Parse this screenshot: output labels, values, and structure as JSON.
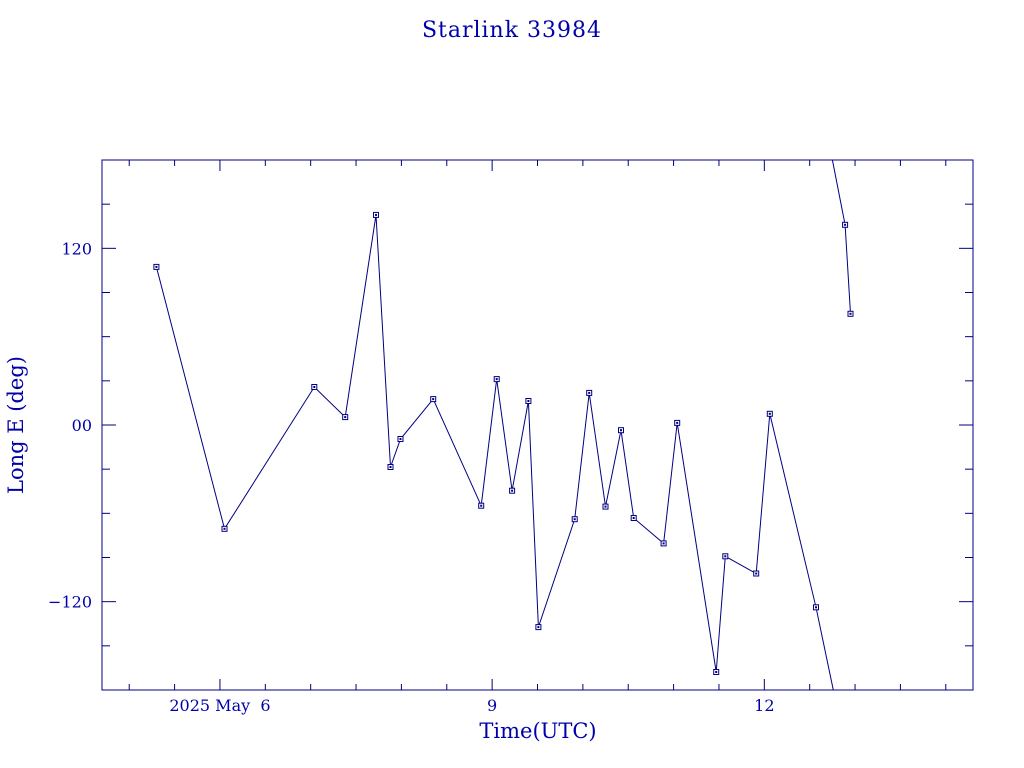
{
  "chart_data": {
    "type": "line",
    "title": "Starlink 33984",
    "xlabel": "Time(UTC)",
    "ylabel": "Long E (deg)",
    "x_unit": "days (2025 May)",
    "xlim": [
      4.7,
      14.3
    ],
    "ylim": [
      -180,
      180
    ],
    "x_ticks": [
      {
        "value": 6,
        "label": "2025 May  6"
      },
      {
        "value": 9,
        "label": "9"
      },
      {
        "value": 12,
        "label": "12"
      }
    ],
    "y_ticks": [
      {
        "value": 120,
        "label": "120"
      },
      {
        "value": 0,
        "label": "00"
      },
      {
        "value": -120,
        "label": "−120"
      }
    ],
    "grid": false,
    "colors": {
      "axes": "#000080",
      "series": "#000080",
      "text": "#0000aa"
    },
    "series": [
      {
        "values": [
          [
            5.3,
            107.4
          ],
          [
            6.05,
            -70.5
          ],
          [
            7.04,
            25.8
          ],
          [
            7.38,
            5.4
          ],
          [
            7.72,
            142.7
          ],
          [
            7.88,
            -28.5
          ],
          [
            7.99,
            -9.5
          ],
          [
            8.35,
            17.6
          ],
          [
            8.88,
            -54.8
          ],
          [
            9.05,
            31.2
          ],
          [
            9.22,
            -44.6
          ],
          [
            9.4,
            16.3
          ],
          [
            9.51,
            -137.3
          ],
          [
            9.91,
            -64.0
          ],
          [
            10.07,
            21.8
          ],
          [
            10.25,
            -55.4
          ],
          [
            10.42,
            -3.5
          ],
          [
            10.56,
            -63.2
          ],
          [
            10.89,
            -80.4
          ],
          [
            11.04,
            1.4
          ],
          [
            11.47,
            -167.8
          ],
          [
            11.57,
            -89.2
          ],
          [
            11.91,
            -100.9
          ],
          [
            12.06,
            7.6
          ],
          [
            12.57,
            -123.8
          ],
          [
            12.76,
            -180
          ]
        ]
      },
      {
        "values": [
          [
            12.75,
            180
          ],
          [
            12.89,
            136.0
          ],
          [
            12.95,
            75.5
          ]
        ]
      }
    ]
  }
}
